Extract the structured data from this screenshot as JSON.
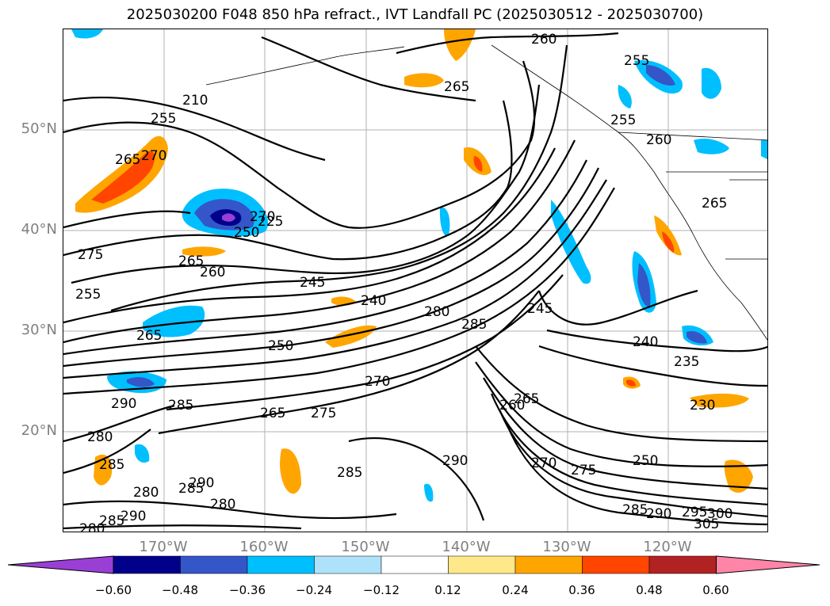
{
  "title": "2025030200 F048 850 hPa refract., IVT Landfall PC (2025030512 - 2025030700)",
  "map": {
    "lat_labels": [
      "50°N",
      "40°N",
      "30°N",
      "20°N"
    ],
    "lon_labels": [
      "170°W",
      "160°W",
      "150°W",
      "140°W",
      "130°W",
      "120°W"
    ],
    "contour_labels": [
      "260",
      "255",
      "265",
      "270",
      "255",
      "265",
      "270",
      "250",
      "275",
      "265",
      "260",
      "245",
      "240",
      "255",
      "280",
      "285",
      "265",
      "250",
      "270",
      "285",
      "265",
      "275",
      "260",
      "290",
      "280",
      "285",
      "280",
      "285",
      "290",
      "280",
      "280",
      "285",
      "290",
      "285",
      "290",
      "270",
      "275",
      "250",
      "265",
      "240",
      "235",
      "230",
      "265",
      "255",
      "260",
      "285",
      "290",
      "295",
      "300",
      "305",
      "210",
      "245",
      "225"
    ]
  },
  "colorbar": {
    "ticks": [
      "−0.60",
      "−0.48",
      "−0.36",
      "−0.24",
      "−0.12",
      "0.12",
      "0.24",
      "0.36",
      "0.48",
      "0.60"
    ],
    "colors": [
      "#9a3fd6",
      "#00008b",
      "#3456c8",
      "#00bfff",
      "#aee2fa",
      "#ffffff",
      "#ffe88a",
      "#ffa500",
      "#ff4500",
      "#b22222",
      "#ff85a8"
    ]
  }
}
